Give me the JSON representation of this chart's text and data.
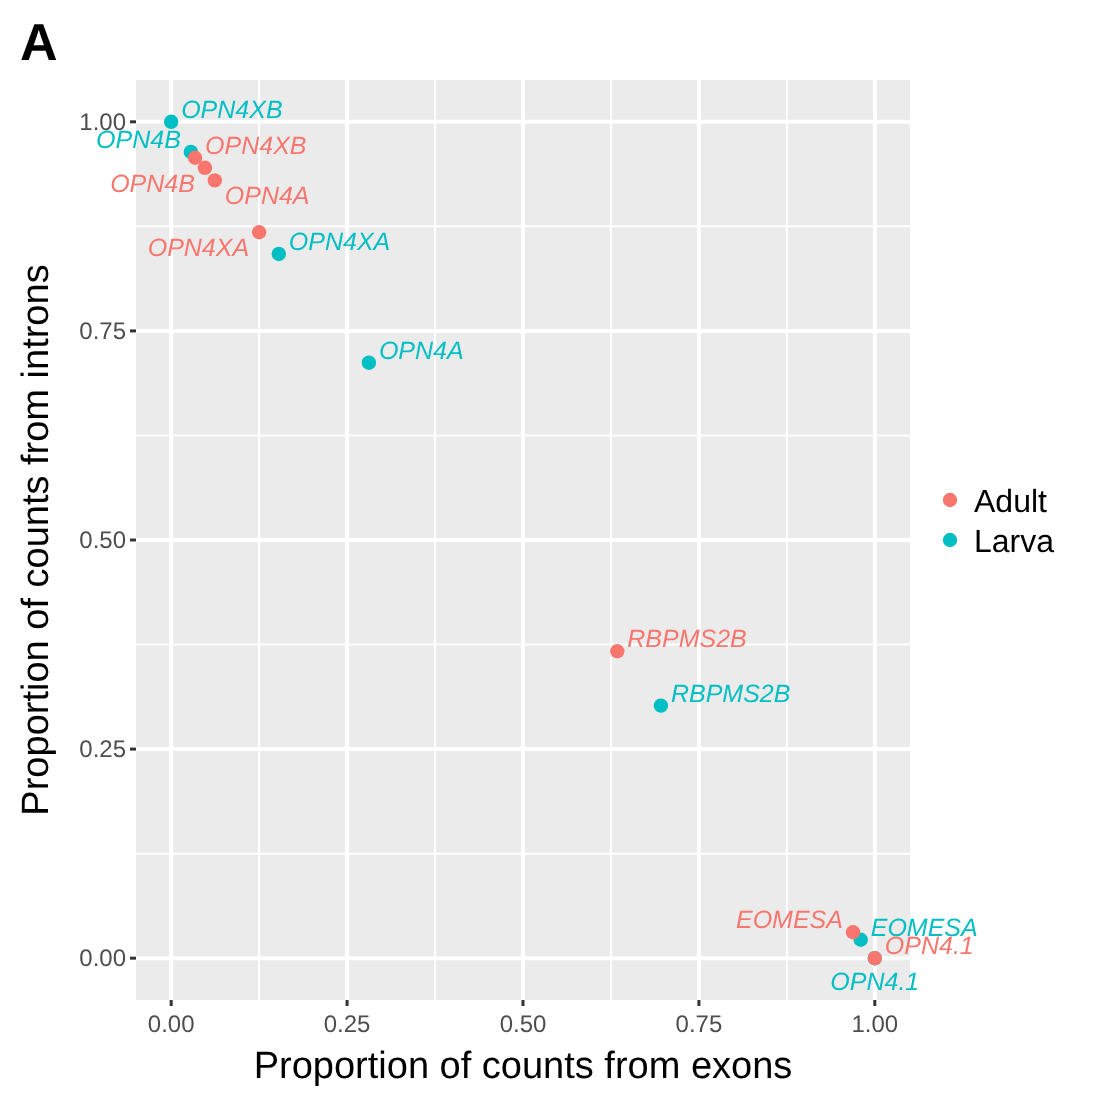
{
  "chart_data": {
    "type": "scatter",
    "title": "A",
    "xlabel": "Proportion of counts from exons",
    "ylabel": "Proportion of counts from introns",
    "xlim": [
      -0.05,
      1.05
    ],
    "ylim": [
      -0.05,
      1.05
    ],
    "xticks": [
      {
        "value": 0,
        "label": "0.00"
      },
      {
        "value": 0.25,
        "label": "0.25"
      },
      {
        "value": 0.5,
        "label": "0.50"
      },
      {
        "value": 0.75,
        "label": "0.75"
      },
      {
        "value": 1,
        "label": "1.00"
      }
    ],
    "yticks": [
      {
        "value": 0,
        "label": "0.00"
      },
      {
        "value": 0.25,
        "label": "0.25"
      },
      {
        "value": 0.5,
        "label": "0.50"
      },
      {
        "value": 0.75,
        "label": "0.75"
      },
      {
        "value": 1,
        "label": "1.00"
      }
    ],
    "grid": true,
    "legend": "right",
    "marker": "circle",
    "series": [
      {
        "name": "Larva",
        "color": "#00bfc4",
        "x": [
          0.0,
          0.028,
          0.153,
          0.281,
          0.696,
          0.98,
          1.0
        ],
        "values": [
          1.0,
          0.964,
          0.842,
          0.712,
          0.302,
          0.022,
          0.0
        ],
        "value_labels": [
          "OPN4XB",
          "OPN4B",
          "OPN4XA",
          "OPN4A",
          "RBPMS2B",
          "EOMESA",
          "OPN4.1"
        ]
      },
      {
        "name": "Adult",
        "color": "#f8766d",
        "x": [
          0.034,
          0.048,
          0.062,
          0.125,
          0.634,
          0.969,
          1.0
        ],
        "values": [
          0.957,
          0.945,
          0.93,
          0.868,
          0.367,
          0.031,
          0.0
        ],
        "value_labels": [
          "OPN4XB",
          "OPN4B",
          "OPN4A",
          "OPN4XA",
          "RBPMS2B",
          "EOMESA",
          "OPN4.1"
        ]
      }
    ]
  }
}
